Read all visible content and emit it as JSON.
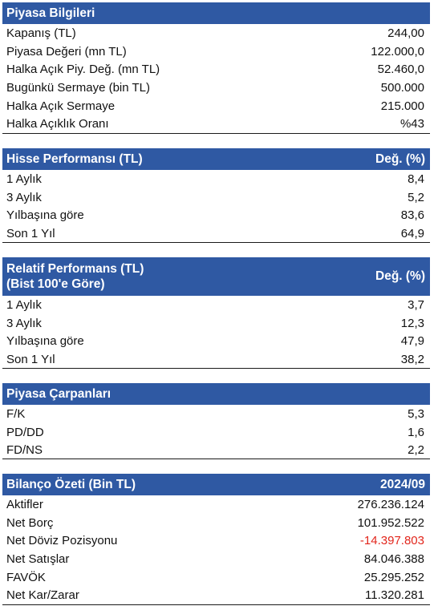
{
  "piyasa_bilgileri": {
    "title": "Piyasa Bilgileri",
    "rows": [
      {
        "label": "Kapanış (TL)",
        "value": "244,00"
      },
      {
        "label": "Piyasa Değeri (mn TL)",
        "value": "122.000,0"
      },
      {
        "label": "Halka Açık Piy. Değ. (mn TL)",
        "value": "52.460,0"
      },
      {
        "label": "Bugünkü Sermaye (bin TL)",
        "value": "500.000"
      },
      {
        "label": "Halka Açık Sermaye",
        "value": "215.000"
      },
      {
        "label": "Halka Açıklık Oranı",
        "value": "%43"
      }
    ]
  },
  "hisse_performansi": {
    "title": "Hisse Performansı (TL)",
    "value_header": "Değ. (%)",
    "rows": [
      {
        "label": "1 Aylık",
        "value": "8,4"
      },
      {
        "label": "3 Aylık",
        "value": "5,2"
      },
      {
        "label": "Yılbaşına göre",
        "value": "83,6"
      },
      {
        "label": "Son 1 Yıl",
        "value": "64,9"
      }
    ]
  },
  "relatif_performans": {
    "title": "Relatif Performans (TL)\n(Bist 100'e Göre)",
    "value_header": "Değ. (%)",
    "rows": [
      {
        "label": "1 Aylık",
        "value": "3,7"
      },
      {
        "label": "3 Aylık",
        "value": "12,3"
      },
      {
        "label": "Yılbaşına göre",
        "value": "47,9"
      },
      {
        "label": "Son 1 Yıl",
        "value": "38,2"
      }
    ]
  },
  "piyasa_carpanlari": {
    "title": "Piyasa Çarpanları",
    "rows": [
      {
        "label": "F/K",
        "value": "5,3"
      },
      {
        "label": "PD/DD",
        "value": "1,6"
      },
      {
        "label": "FD/NS",
        "value": "2,2"
      }
    ]
  },
  "bilanco_ozeti": {
    "title": "Bilanço Özeti (Bin TL)",
    "value_header": "2024/09",
    "negative_color": "#e2261c",
    "rows": [
      {
        "label": "Aktifler",
        "value": "276.236.124"
      },
      {
        "label": "Net Borç",
        "value": "101.952.522"
      },
      {
        "label": "Net Döviz Pozisyonu",
        "value": "-14.397.803"
      },
      {
        "label": "Net Satışlar",
        "value": "84.046.388"
      },
      {
        "label": "FAVÖK",
        "value": "25.295.252"
      },
      {
        "label": "Net Kar/Zarar",
        "value": "11.320.281"
      }
    ]
  },
  "colors": {
    "header_bg": "#2f59a3",
    "header_text": "#ffffff"
  }
}
